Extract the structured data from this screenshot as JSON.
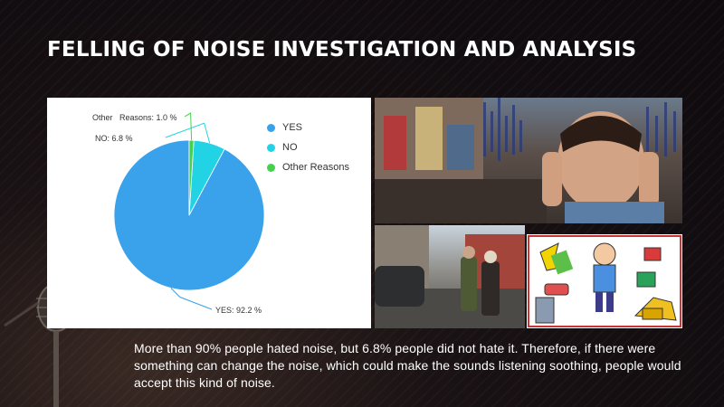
{
  "slide": {
    "title": "FELLING OF NOISE INVESTIGATION AND ANALYSIS",
    "caption": "More than 90% people hated noise, but 6.8% people did not hate it. Therefore, if there were something can change the noise, which could make the sounds listening soothing, people would accept this kind of noise."
  },
  "chart_data": {
    "type": "pie",
    "title": "",
    "slices": [
      {
        "name": "YES",
        "value": 92.2,
        "label": "YES: 92.2 %",
        "color": "#3aa2ea"
      },
      {
        "name": "NO",
        "value": 6.8,
        "label": "NO: 6.8 %",
        "color": "#22d3e6"
      },
      {
        "name": "Other Reasons",
        "value": 1.0,
        "label": "Other   Reasons: 1.0 %",
        "color": "#44d14e"
      }
    ],
    "legend": [
      "YES",
      "NO",
      "Other Reasons"
    ],
    "legend_position": "right"
  },
  "images": {
    "top": "noisy-street-man-covering-ears-photo",
    "bottom_left": "street-people-covering-ears-photo",
    "bottom_right": "noise-sources-cartoon-illustration"
  }
}
